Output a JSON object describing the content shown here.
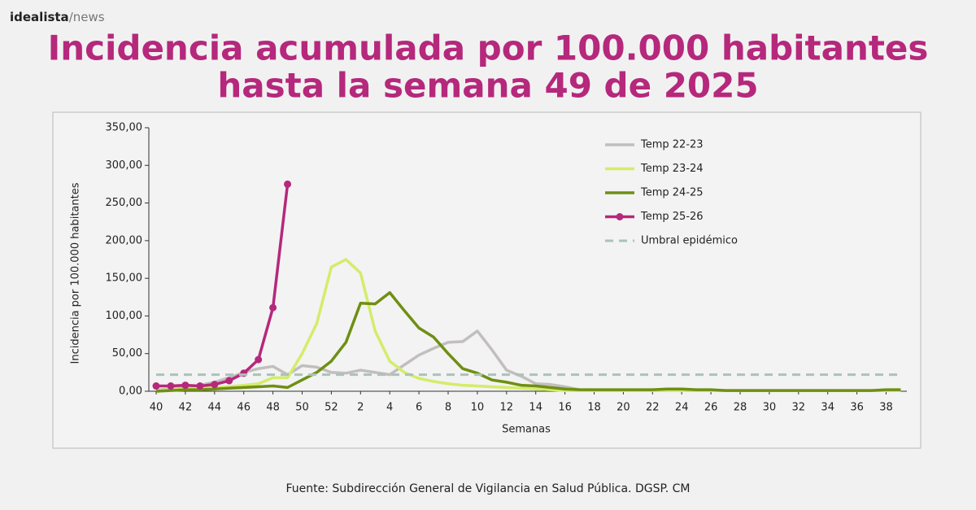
{
  "brand": [
    "idealista",
    "/news"
  ],
  "chart_data": {
    "type": "line",
    "title": [
      "Incidencia acumulada por 100.000 habitantes",
      "hasta la semana 49 de 2025"
    ],
    "y_label": "Incidencia por 100.000 habitantes",
    "x_label": "Semanas",
    "source": "Fuente: Subdirección General de Vigilancia en Salud Pública. DGSP. CM",
    "categories": [
      "40",
      null,
      "42",
      null,
      "44",
      null,
      "46",
      null,
      "48",
      null,
      "50",
      null,
      "52",
      null,
      "2",
      null,
      "4",
      null,
      "6",
      null,
      "8",
      null,
      "10",
      null,
      "12",
      null,
      "14",
      null,
      "16",
      null,
      "18",
      null,
      "20",
      null,
      "22",
      null,
      "24",
      null,
      "26",
      null,
      "28",
      null,
      "30",
      null,
      "32",
      null,
      "34",
      null,
      "36",
      null,
      "38",
      null
    ],
    "ylim": [
      0,
      350
    ],
    "yticks": [
      {
        "value": 0,
        "label": "0,00"
      },
      {
        "value": 50,
        "label": "50,00"
      },
      {
        "value": 100,
        "label": "100,00"
      },
      {
        "value": 150,
        "label": "150,00"
      },
      {
        "value": 200,
        "label": "200,00"
      },
      {
        "value": 250,
        "label": "250,00"
      },
      {
        "value": 300,
        "label": "300,00"
      },
      {
        "value": 350,
        "label": "350,00"
      }
    ],
    "series": [
      {
        "name": "Temp 22-23",
        "color": "#c3bebe",
        "values": [
          2,
          3,
          5,
          8,
          12,
          18,
          25,
          30,
          33,
          22,
          34,
          32,
          25,
          24,
          28,
          25,
          22,
          35,
          48,
          57,
          65,
          66,
          80,
          55,
          28,
          20,
          10,
          9,
          6,
          2,
          1,
          1,
          1,
          1,
          1,
          1,
          1,
          1,
          1,
          1,
          1,
          1,
          1,
          1,
          1,
          1,
          1,
          1,
          1,
          1,
          1,
          1
        ]
      },
      {
        "name": "Temp 23-24",
        "color": "#d4ec6a",
        "values": [
          1,
          2,
          3,
          4,
          5,
          6,
          8,
          10,
          18,
          18,
          50,
          90,
          165,
          175,
          157,
          80,
          40,
          25,
          17,
          13,
          10,
          8,
          7,
          6,
          5,
          4,
          3,
          2,
          1,
          1,
          1,
          1,
          1,
          1,
          1,
          1,
          1,
          1,
          1,
          1,
          1,
          1,
          1,
          1,
          1,
          1,
          1,
          1,
          1,
          1,
          1,
          1
        ]
      },
      {
        "name": "Temp 24-25",
        "color": "#6f8f12",
        "values": [
          0,
          1,
          2,
          2,
          3,
          4,
          5,
          6,
          7,
          5,
          15,
          25,
          40,
          65,
          117,
          116,
          131,
          107,
          84,
          72,
          50,
          30,
          24,
          15,
          12,
          8,
          7,
          5,
          3,
          2,
          2,
          2,
          2,
          2,
          2,
          3,
          3,
          2,
          2,
          1,
          1,
          1,
          1,
          1,
          1,
          1,
          1,
          1,
          1,
          1,
          2,
          2
        ]
      },
      {
        "name": "Temp 25-26",
        "color": "#b5287c",
        "markers": true,
        "values": [
          7,
          7,
          8,
          7,
          9,
          14,
          24,
          42,
          111,
          275,
          null,
          null,
          null,
          null,
          null,
          null,
          null,
          null,
          null,
          null,
          null,
          null,
          null,
          null,
          null,
          null,
          null,
          null,
          null,
          null,
          null,
          null,
          null,
          null,
          null,
          null,
          null,
          null,
          null,
          null,
          null,
          null,
          null,
          null,
          null,
          null,
          null,
          null,
          null,
          null,
          null,
          null
        ]
      },
      {
        "name": "Umbral epidémico",
        "color": "#a9c3b8",
        "dashed": true,
        "values": [
          22,
          22,
          22,
          22,
          22,
          22,
          22,
          22,
          22,
          22,
          22,
          22,
          22,
          22,
          22,
          22,
          22,
          22,
          22,
          22,
          22,
          22,
          22,
          22,
          22,
          22,
          22,
          22,
          22,
          22,
          22,
          22,
          22,
          22,
          22,
          22,
          22,
          22,
          22,
          22,
          22,
          22,
          22,
          22,
          22,
          22,
          22,
          22,
          22,
          22,
          22,
          22
        ]
      }
    ]
  }
}
